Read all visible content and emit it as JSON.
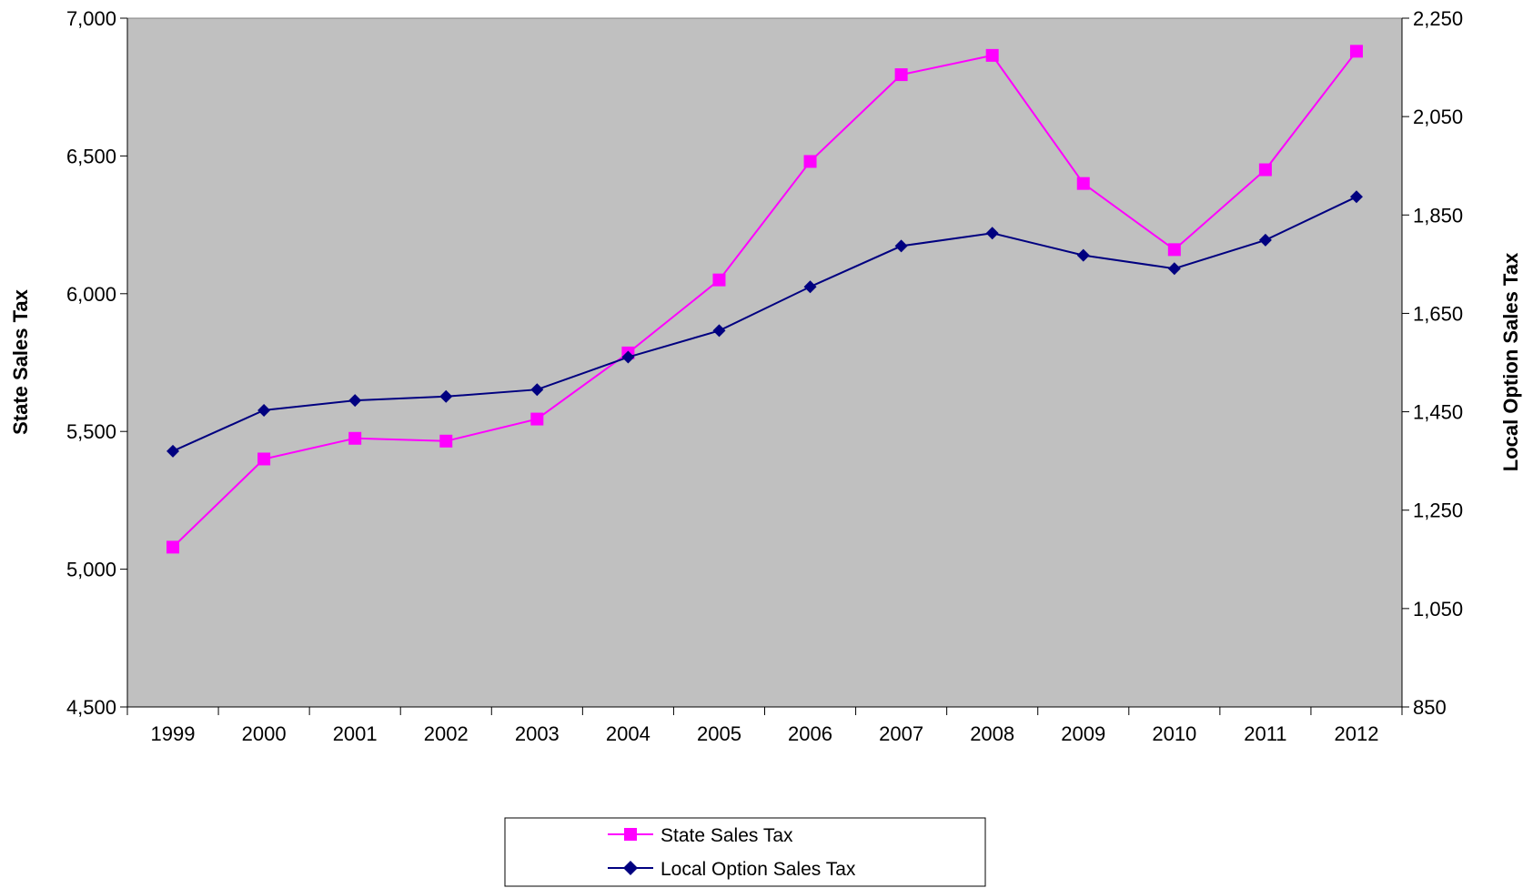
{
  "chart_data": {
    "type": "line",
    "title": "",
    "categories": [
      "1999",
      "2000",
      "2001",
      "2002",
      "2003",
      "2004",
      "2005",
      "2006",
      "2007",
      "2008",
      "2009",
      "2010",
      "2011",
      "2012"
    ],
    "series": [
      {
        "name": "State Sales Tax",
        "axis": "left",
        "color": "#FF00FF",
        "marker": "square",
        "values": [
          5080,
          5400,
          5475,
          5465,
          5545,
          5785,
          6050,
          6480,
          6795,
          6865,
          6400,
          6160,
          6450,
          6880
        ]
      },
      {
        "name": "Local Option Sales Tax",
        "axis": "right",
        "color": "#000080",
        "marker": "diamond",
        "values": [
          1370,
          1453,
          1473,
          1481,
          1495,
          1561,
          1615,
          1704,
          1787,
          1813,
          1768,
          1741,
          1799,
          1887
        ]
      }
    ],
    "ylabel": "State Sales Tax",
    "ylim": [
      4500,
      7000
    ],
    "yticks": [
      "4,500",
      "5,000",
      "5,500",
      "6,000",
      "6,500",
      "7,000"
    ],
    "y2label": "Local Option Sales Tax",
    "y2lim": [
      850,
      2250
    ],
    "y2ticks": [
      "850",
      "1,050",
      "1,250",
      "1,450",
      "1,650",
      "1,850",
      "2,050",
      "2,250"
    ],
    "grid": false,
    "plot_background": "#C0C0C0",
    "legend_position": "bottom"
  }
}
